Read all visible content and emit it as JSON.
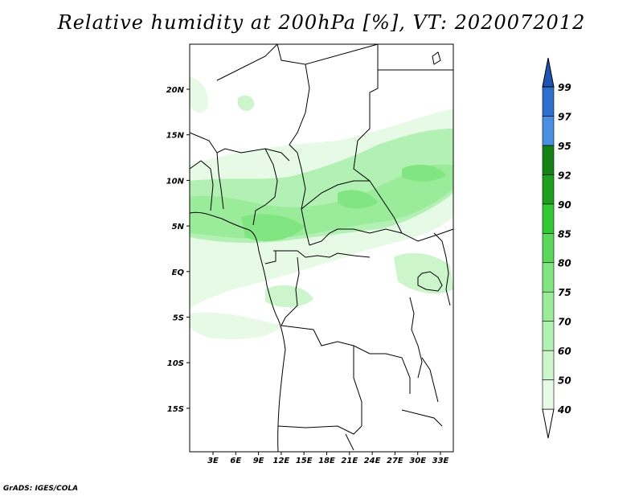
{
  "title": "Relative humidity at 200hPa [%], VT: 2020072012",
  "credit": "GrADS: IGES/COLA",
  "map": {
    "lon_labels": [
      "3E",
      "6E",
      "9E",
      "12E",
      "15E",
      "18E",
      "21E",
      "24E",
      "27E",
      "30E",
      "33E"
    ],
    "lat_labels": [
      "20N",
      "15N",
      "10N",
      "5N",
      "EQ",
      "5S",
      "10S",
      "15S"
    ]
  },
  "colorbar": {
    "levels": [
      "40",
      "50",
      "60",
      "70",
      "75",
      "80",
      "85",
      "90",
      "92",
      "95",
      "97",
      "99"
    ],
    "colors": [
      "#ffffff",
      "#e6fae6",
      "#ccf5cc",
      "#b3f0b3",
      "#9aeb9a",
      "#81e681",
      "#5bd75b",
      "#35c835",
      "#1ea01e",
      "#158215",
      "#4a90e2",
      "#2c6fcc",
      "#1f55b0"
    ]
  }
}
